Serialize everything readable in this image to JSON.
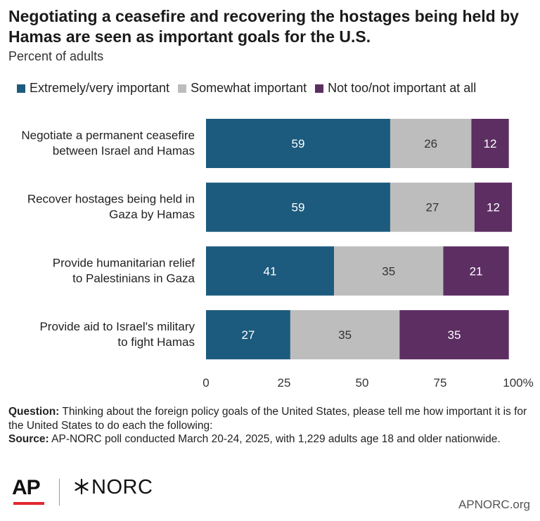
{
  "title": "Negotiating a ceasefire and recovering the hostages being held by Hamas are seen as important goals for the U.S.",
  "subtitle": "Percent of adults",
  "colors": {
    "extremely": "#1c5b7d",
    "somewhat": "#bdbdbd",
    "not": "#5c2e62"
  },
  "chart_data": {
    "type": "bar",
    "orientation": "horizontal",
    "stacked": true,
    "categories": [
      [
        "Negotiate a permanent ceasefire",
        "between Israel and Hamas"
      ],
      [
        "Recover hostages being held in",
        "Gaza by Hamas"
      ],
      [
        "Provide humanitarian relief",
        "to Palestinians in Gaza"
      ],
      [
        "Provide aid to Israel's military",
        "to fight Hamas"
      ]
    ],
    "series": [
      {
        "name": "Extremely/very important",
        "color": "#1c5b7d",
        "label_color": "#ffffff",
        "values": [
          59,
          59,
          41,
          27
        ]
      },
      {
        "name": "Somewhat important",
        "color": "#bdbdbd",
        "label_color": "#333333",
        "values": [
          26,
          27,
          35,
          35
        ]
      },
      {
        "name": "Not too/not important at all",
        "color": "#5c2e62",
        "label_color": "#ffffff",
        "values": [
          12,
          12,
          21,
          35
        ]
      }
    ],
    "xlim": [
      0,
      100
    ],
    "xticks": [
      "0",
      "25",
      "50",
      "75",
      "100%"
    ],
    "xtick_values": [
      0,
      25,
      50,
      75,
      100
    ],
    "legend": "top-left",
    "grid": false
  },
  "footer": {
    "question_label": "Question:",
    "question_text": "Thinking about the foreign policy goals of the United States, please tell me how important it is for the United States to do each the following:",
    "source_label": "Source:",
    "source_text": "AP-NORC poll conducted March 20-24, 2025, with 1,229 adults age 18 and older nationwide."
  },
  "logos": {
    "ap": "AP",
    "norc": "NORC"
  },
  "site": "APNORC.org"
}
